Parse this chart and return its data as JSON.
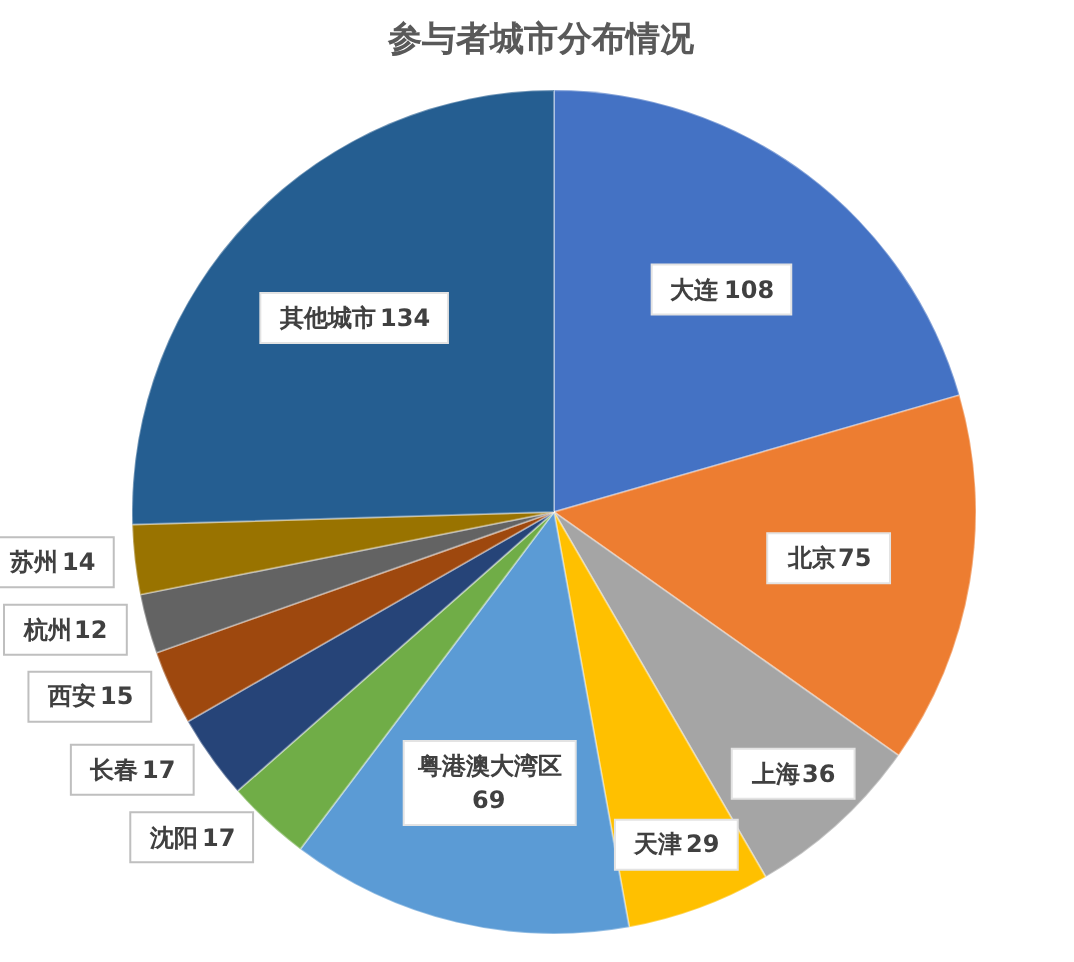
{
  "chart_data": {
    "type": "pie",
    "title": "参与者城市分布情况",
    "categories": [
      "大连",
      "北京",
      "上海",
      "天津",
      "粤港澳大湾区",
      "沈阳",
      "长春",
      "西安",
      "杭州",
      "苏州",
      "其他城市"
    ],
    "values": [
      108,
      75,
      36,
      29,
      69,
      17,
      17,
      15,
      12,
      14,
      134
    ],
    "colors": [
      "#4472c4",
      "#ed7d31",
      "#a5a5a5",
      "#ffc000",
      "#5b9bd5",
      "#70ad47",
      "#264478",
      "#9e480e",
      "#636363",
      "#997300",
      "#255e91"
    ],
    "data_labels": true,
    "legend": false
  }
}
